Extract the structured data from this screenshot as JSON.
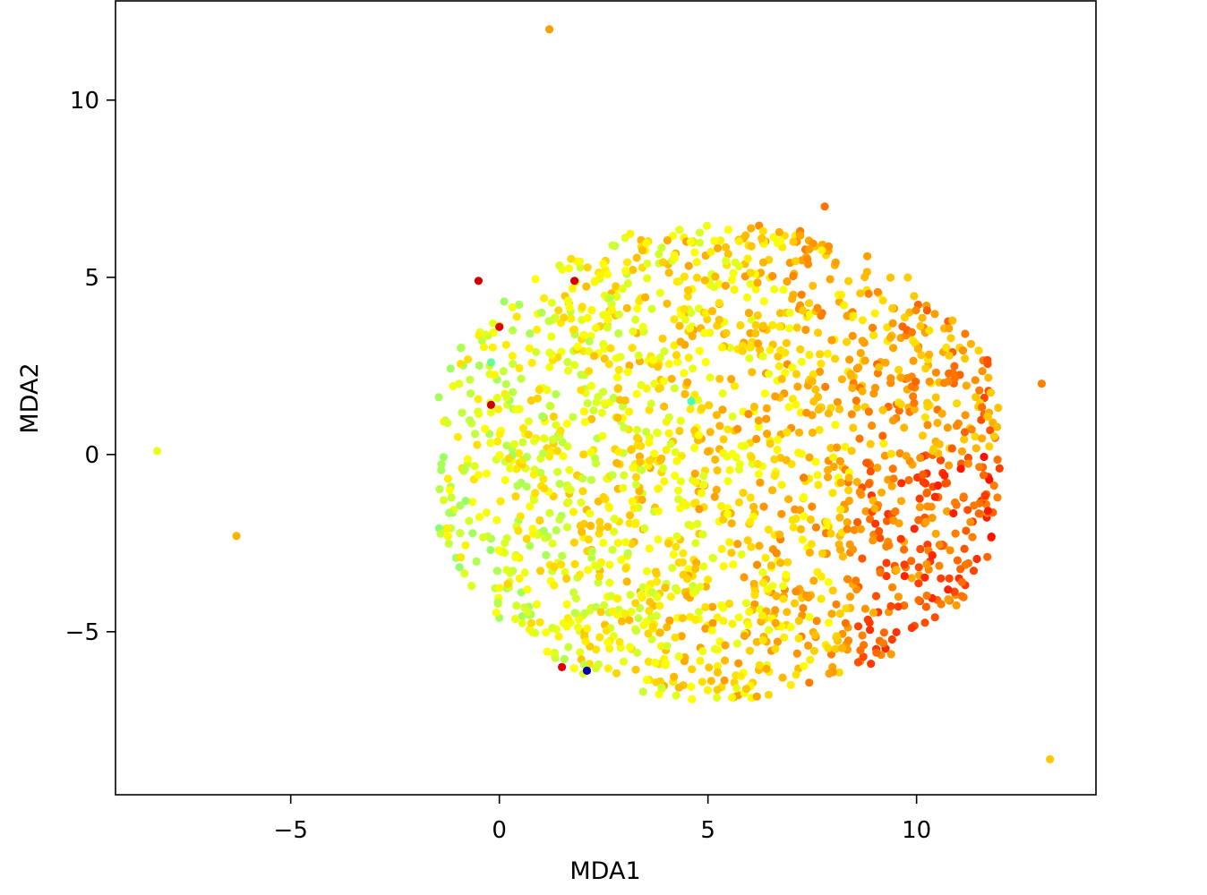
{
  "chart_data": {
    "type": "scatter",
    "title": "",
    "xlabel": "MDA1",
    "ylabel": "MDA2",
    "xlim": [
      -9.2,
      14.3
    ],
    "ylim": [
      -9.6,
      12.8
    ],
    "grid": false,
    "xticks": [
      -5,
      0,
      5,
      10
    ],
    "yticks": [
      -5,
      0,
      5,
      10
    ],
    "xtick_labels": [
      "−5",
      "0",
      "5",
      "10"
    ],
    "ytick_labels": [
      "−5",
      "0",
      "5",
      "10"
    ],
    "colormap": "jet",
    "note_colors": "points colored by a continuous jet-colormap value c in [0,1]",
    "points": [
      {
        "x": 1.2,
        "y": 12.0,
        "c": 0.72
      },
      {
        "x": -8.2,
        "y": 0.1,
        "c": 0.6
      },
      {
        "x": -6.3,
        "y": -2.3,
        "c": 0.7
      },
      {
        "x": 13.0,
        "y": 2.0,
        "c": 0.75
      },
      {
        "x": 13.2,
        "y": -8.6,
        "c": 0.68
      },
      {
        "x": 7.8,
        "y": 7.0,
        "c": 0.76
      },
      {
        "x": -0.5,
        "y": 4.9,
        "c": 0.92
      },
      {
        "x": 1.8,
        "y": 4.9,
        "c": 0.92
      },
      {
        "x": 0.0,
        "y": 3.6,
        "c": 0.9
      },
      {
        "x": -0.2,
        "y": 1.4,
        "c": 0.92
      },
      {
        "x": 1.5,
        "y": -6.0,
        "c": 0.9
      },
      {
        "x": 2.1,
        "y": -6.1,
        "c": 0.05
      },
      {
        "x": 4.6,
        "y": 1.5,
        "c": 0.45
      },
      {
        "x": -0.2,
        "y": 2.6,
        "c": 0.47
      }
    ],
    "cluster": {
      "count": 1900,
      "x_range": [
        -1.5,
        12.0
      ],
      "y_range": [
        -7.2,
        7.0
      ],
      "x_center": 5.3,
      "y_center": -0.2
    }
  }
}
